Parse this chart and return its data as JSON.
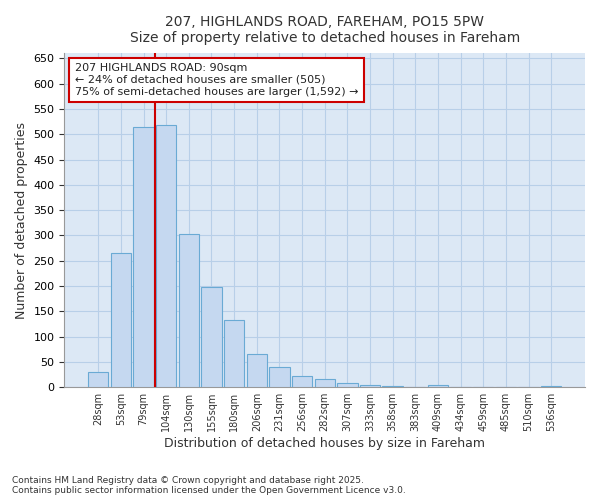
{
  "title1": "207, HIGHLANDS ROAD, FAREHAM, PO15 5PW",
  "title2": "Size of property relative to detached houses in Fareham",
  "xlabel": "Distribution of detached houses by size in Fareham",
  "ylabel": "Number of detached properties",
  "categories": [
    "28sqm",
    "53sqm",
    "79sqm",
    "104sqm",
    "130sqm",
    "155sqm",
    "180sqm",
    "206sqm",
    "231sqm",
    "256sqm",
    "282sqm",
    "307sqm",
    "333sqm",
    "358sqm",
    "383sqm",
    "409sqm",
    "434sqm",
    "459sqm",
    "485sqm",
    "510sqm",
    "536sqm"
  ],
  "values": [
    30,
    265,
    515,
    518,
    303,
    198,
    133,
    65,
    40,
    22,
    16,
    8,
    5,
    3,
    1,
    4,
    1,
    1,
    1,
    1,
    3
  ],
  "bar_color": "#c5d8f0",
  "bar_edge_color": "#6aaad4",
  "red_line_x": 2.5,
  "annotation_line1": "207 HIGHLANDS ROAD: 90sqm",
  "annotation_line2": "← 24% of detached houses are smaller (505)",
  "annotation_line3": "75% of semi-detached houses are larger (1,592) →",
  "annotation_box_color": "#ffffff",
  "annotation_box_edge": "#cc0000",
  "ylim": [
    0,
    660
  ],
  "yticks": [
    0,
    50,
    100,
    150,
    200,
    250,
    300,
    350,
    400,
    450,
    500,
    550,
    600,
    650
  ],
  "grid_color": "#b8cfe8",
  "background_color": "#dce8f5",
  "fig_background": "#ffffff",
  "footer1": "Contains HM Land Registry data © Crown copyright and database right 2025.",
  "footer2": "Contains public sector information licensed under the Open Government Licence v3.0."
}
